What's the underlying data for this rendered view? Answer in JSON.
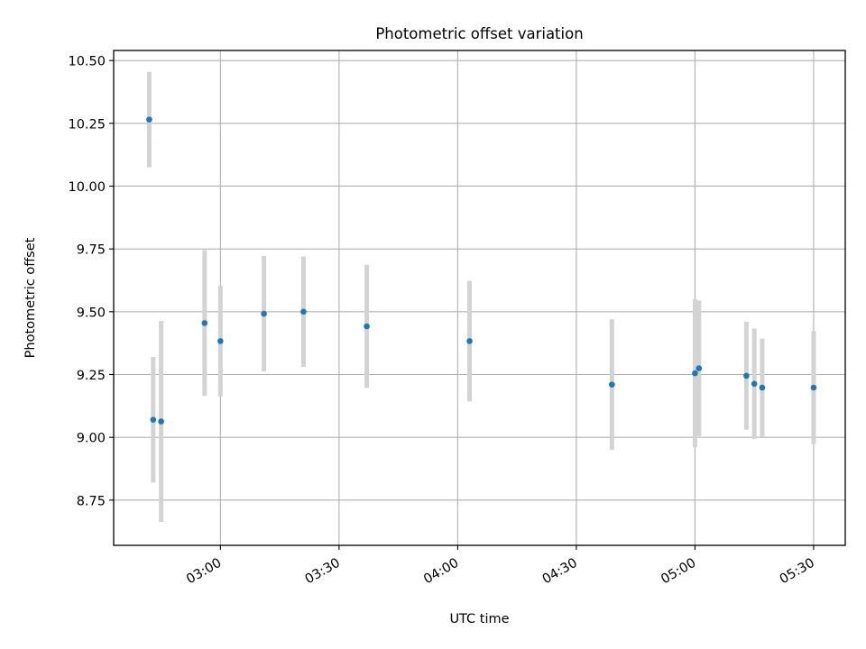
{
  "chart_data": {
    "type": "scatter",
    "title": "Photometric offset variation",
    "xlabel": "UTC time",
    "ylabel": "Photometric offset",
    "xlim": [
      "02:33",
      "05:38"
    ],
    "ylim": [
      8.57,
      10.54
    ],
    "x_ticks": [
      "03:00",
      "03:30",
      "04:00",
      "04:30",
      "05:00",
      "05:30"
    ],
    "y_ticks": [
      8.75,
      9.0,
      9.25,
      9.5,
      9.75,
      10.0,
      10.25,
      10.5
    ],
    "y_tick_labels": [
      "8.75",
      "9.00",
      "9.25",
      "9.50",
      "9.75",
      "10.00",
      "10.25",
      "10.50"
    ],
    "grid": true,
    "series": [
      {
        "color": "#1f77b4",
        "errorbar_color": "#d3d3d3",
        "points": [
          {
            "x": "02:42",
            "y": 10.265,
            "err": 0.19
          },
          {
            "x": "02:43",
            "y": 9.07,
            "err": 0.25
          },
          {
            "x": "02:45",
            "y": 9.063,
            "err": 0.4
          },
          {
            "x": "02:56",
            "y": 9.455,
            "err": 0.29
          },
          {
            "x": "03:00",
            "y": 9.383,
            "err": 0.22
          },
          {
            "x": "03:11",
            "y": 9.492,
            "err": 0.23
          },
          {
            "x": "03:21",
            "y": 9.5,
            "err": 0.22
          },
          {
            "x": "03:37",
            "y": 9.442,
            "err": 0.245
          },
          {
            "x": "04:03",
            "y": 9.383,
            "err": 0.24
          },
          {
            "x": "04:39",
            "y": 9.21,
            "err": 0.26
          },
          {
            "x": "05:00",
            "y": 9.255,
            "err": 0.295
          },
          {
            "x": "05:01",
            "y": 9.275,
            "err": 0.27
          },
          {
            "x": "05:13",
            "y": 9.245,
            "err": 0.215
          },
          {
            "x": "05:15",
            "y": 9.213,
            "err": 0.22
          },
          {
            "x": "05:17",
            "y": 9.198,
            "err": 0.195
          },
          {
            "x": "05:30",
            "y": 9.198,
            "err": 0.225
          }
        ]
      }
    ]
  }
}
